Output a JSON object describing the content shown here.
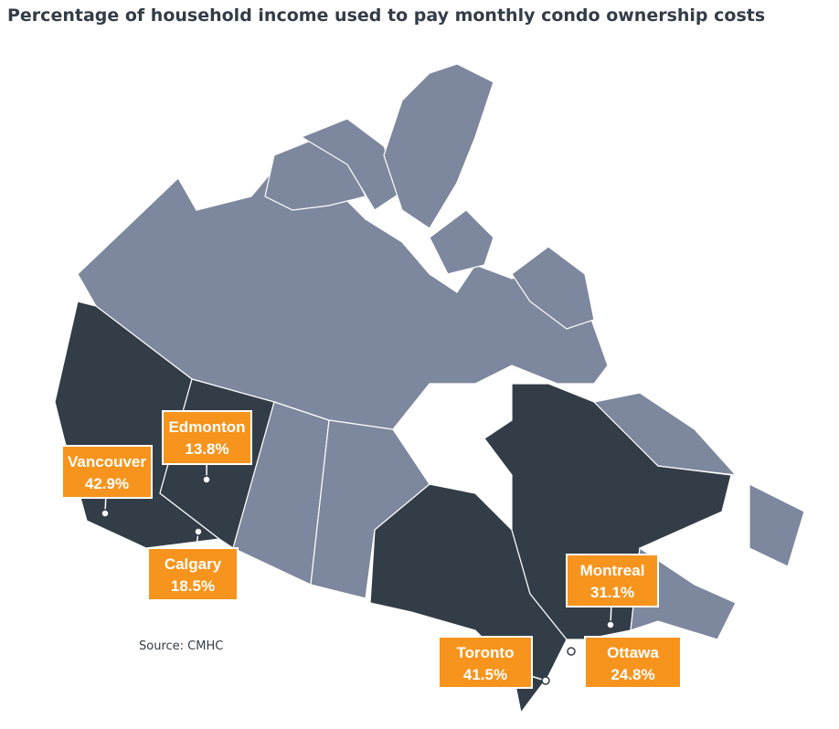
{
  "title": "Percentage of household income used to pay monthly condo ownership costs",
  "source": "Source: CMHC",
  "cities": [
    {
      "name": "Vancouver",
      "percent": "42.9%"
    },
    {
      "name": "Edmonton",
      "percent": "13.8%"
    },
    {
      "name": "Calgary",
      "percent": "18.5%"
    },
    {
      "name": "Montreal",
      "percent": "31.1%"
    },
    {
      "name": "Toronto",
      "percent": "41.5%"
    },
    {
      "name": "Ottawa",
      "percent": "24.8%"
    }
  ]
}
